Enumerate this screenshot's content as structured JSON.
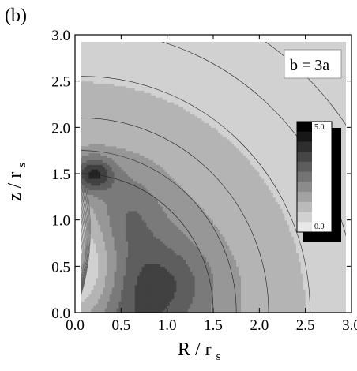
{
  "panel_label": "(b)",
  "annotation": "b = 3a",
  "chart_data": {
    "type": "heatmap",
    "subtype": "filled-contour",
    "xlabel": "R / r",
    "xlabel_sub": "s",
    "ylabel": "z / r",
    "ylabel_sub": "s",
    "xlim": [
      0.0,
      3.0
    ],
    "ylim": [
      0.0,
      3.0
    ],
    "xticks": [
      "0.0",
      "0.5",
      "1.0",
      "1.5",
      "2.0",
      "2.5",
      "3.0"
    ],
    "yticks": [
      "0.0",
      "0.5",
      "1.0",
      "1.5",
      "2.0",
      "2.5",
      "3.0"
    ],
    "colorbar": {
      "min": 0.0,
      "max": 5.0,
      "min_label": "0.0",
      "max_label": "5.0"
    },
    "features": {
      "peak": {
        "R": 0.2,
        "z": 1.5
      },
      "low_region": {
        "R_max": 0.6,
        "z_max": 1.2
      }
    },
    "grayscale": {
      "low": "#ffffff",
      "high": "#000000"
    },
    "grid": false
  }
}
